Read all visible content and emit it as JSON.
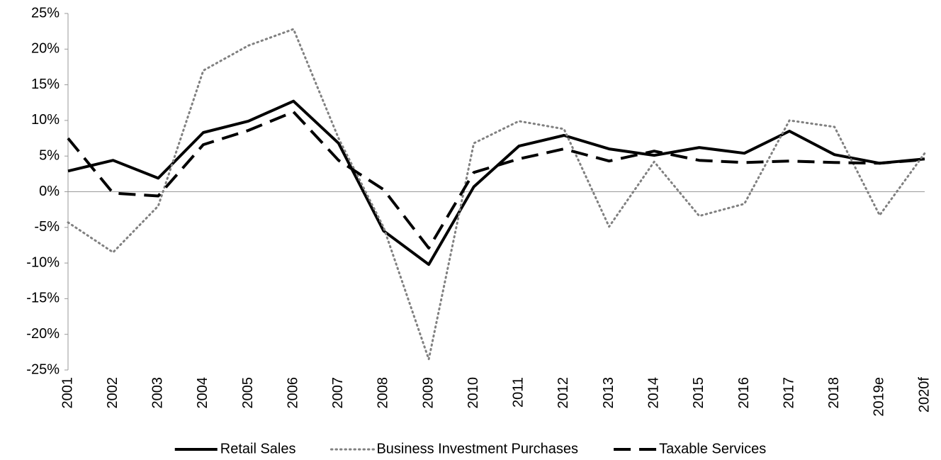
{
  "chart_data": {
    "type": "line",
    "categories": [
      "2001",
      "2002",
      "2003",
      "2004",
      "2005",
      "2006",
      "2007",
      "2008",
      "2009",
      "2010",
      "2011",
      "2012",
      "2013",
      "2014",
      "2015",
      "2016",
      "2017",
      "2018",
      "2019e",
      "2020f"
    ],
    "series": [
      {
        "name": "Retail Sales",
        "color": "#000000",
        "style": "solid",
        "values": [
          2.9,
          4.4,
          1.9,
          8.3,
          9.9,
          12.7,
          6.8,
          -5.5,
          -10.2,
          0.7,
          6.4,
          7.9,
          6.0,
          5.1,
          6.2,
          5.4,
          8.5,
          5.2,
          4.0,
          4.6
        ]
      },
      {
        "name": "Business Investment Purchases",
        "color": "#808080",
        "style": "dotted",
        "values": [
          -4.3,
          -8.5,
          -2.0,
          17.0,
          20.5,
          22.8,
          7.5,
          -5.0,
          -23.5,
          6.8,
          9.9,
          8.8,
          -4.9,
          4.2,
          -3.4,
          -1.7,
          10.0,
          9.1,
          -3.3,
          5.4
        ]
      },
      {
        "name": "Taxable Services",
        "color": "#000000",
        "style": "dashed",
        "values": [
          7.5,
          -0.2,
          -0.6,
          6.6,
          8.6,
          11.2,
          4.4,
          0.3,
          -7.9,
          2.7,
          4.6,
          6.0,
          4.3,
          5.7,
          4.4,
          4.1,
          4.3,
          4.1,
          4.0,
          4.5
        ]
      }
    ],
    "ylim": [
      -25,
      25
    ],
    "yticks": [
      {
        "value": -25,
        "label": "-25%"
      },
      {
        "value": -20,
        "label": "-20%"
      },
      {
        "value": -15,
        "label": "-15%"
      },
      {
        "value": -10,
        "label": "-10%"
      },
      {
        "value": -5,
        "label": "-5%"
      },
      {
        "value": 0,
        "label": "0%"
      },
      {
        "value": 5,
        "label": "5%"
      },
      {
        "value": 10,
        "label": "10%"
      },
      {
        "value": 15,
        "label": "15%"
      },
      {
        "value": 20,
        "label": "20%"
      },
      {
        "value": 25,
        "label": "25%"
      }
    ],
    "legend": "bottom"
  }
}
